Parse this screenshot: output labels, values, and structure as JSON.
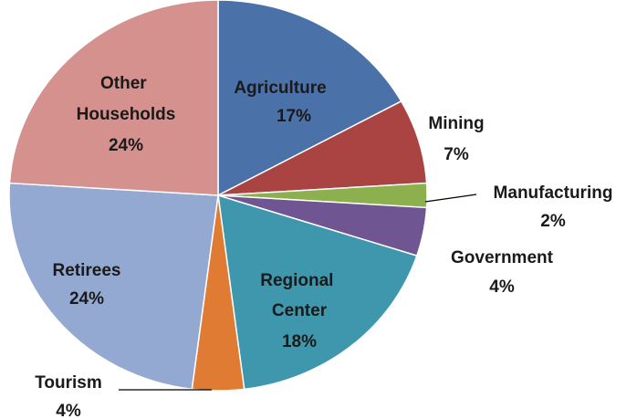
{
  "chart_data": {
    "type": "pie",
    "categories": [
      "Agriculture",
      "Mining",
      "Manufacturing",
      "Government",
      "Regional Center",
      "Tourism",
      "Retirees",
      "Other Households"
    ],
    "values": [
      17,
      7,
      2,
      4,
      18,
      4,
      24,
      24
    ],
    "value_labels": [
      "17%",
      "7%",
      "2%",
      "4%",
      "18%",
      "4%",
      "24%",
      "24%"
    ],
    "colors": [
      "#4a72a8",
      "#a94442",
      "#8db04f",
      "#6f5592",
      "#3f97ad",
      "#e07b33",
      "#93a9d2",
      "#d4918e"
    ]
  }
}
